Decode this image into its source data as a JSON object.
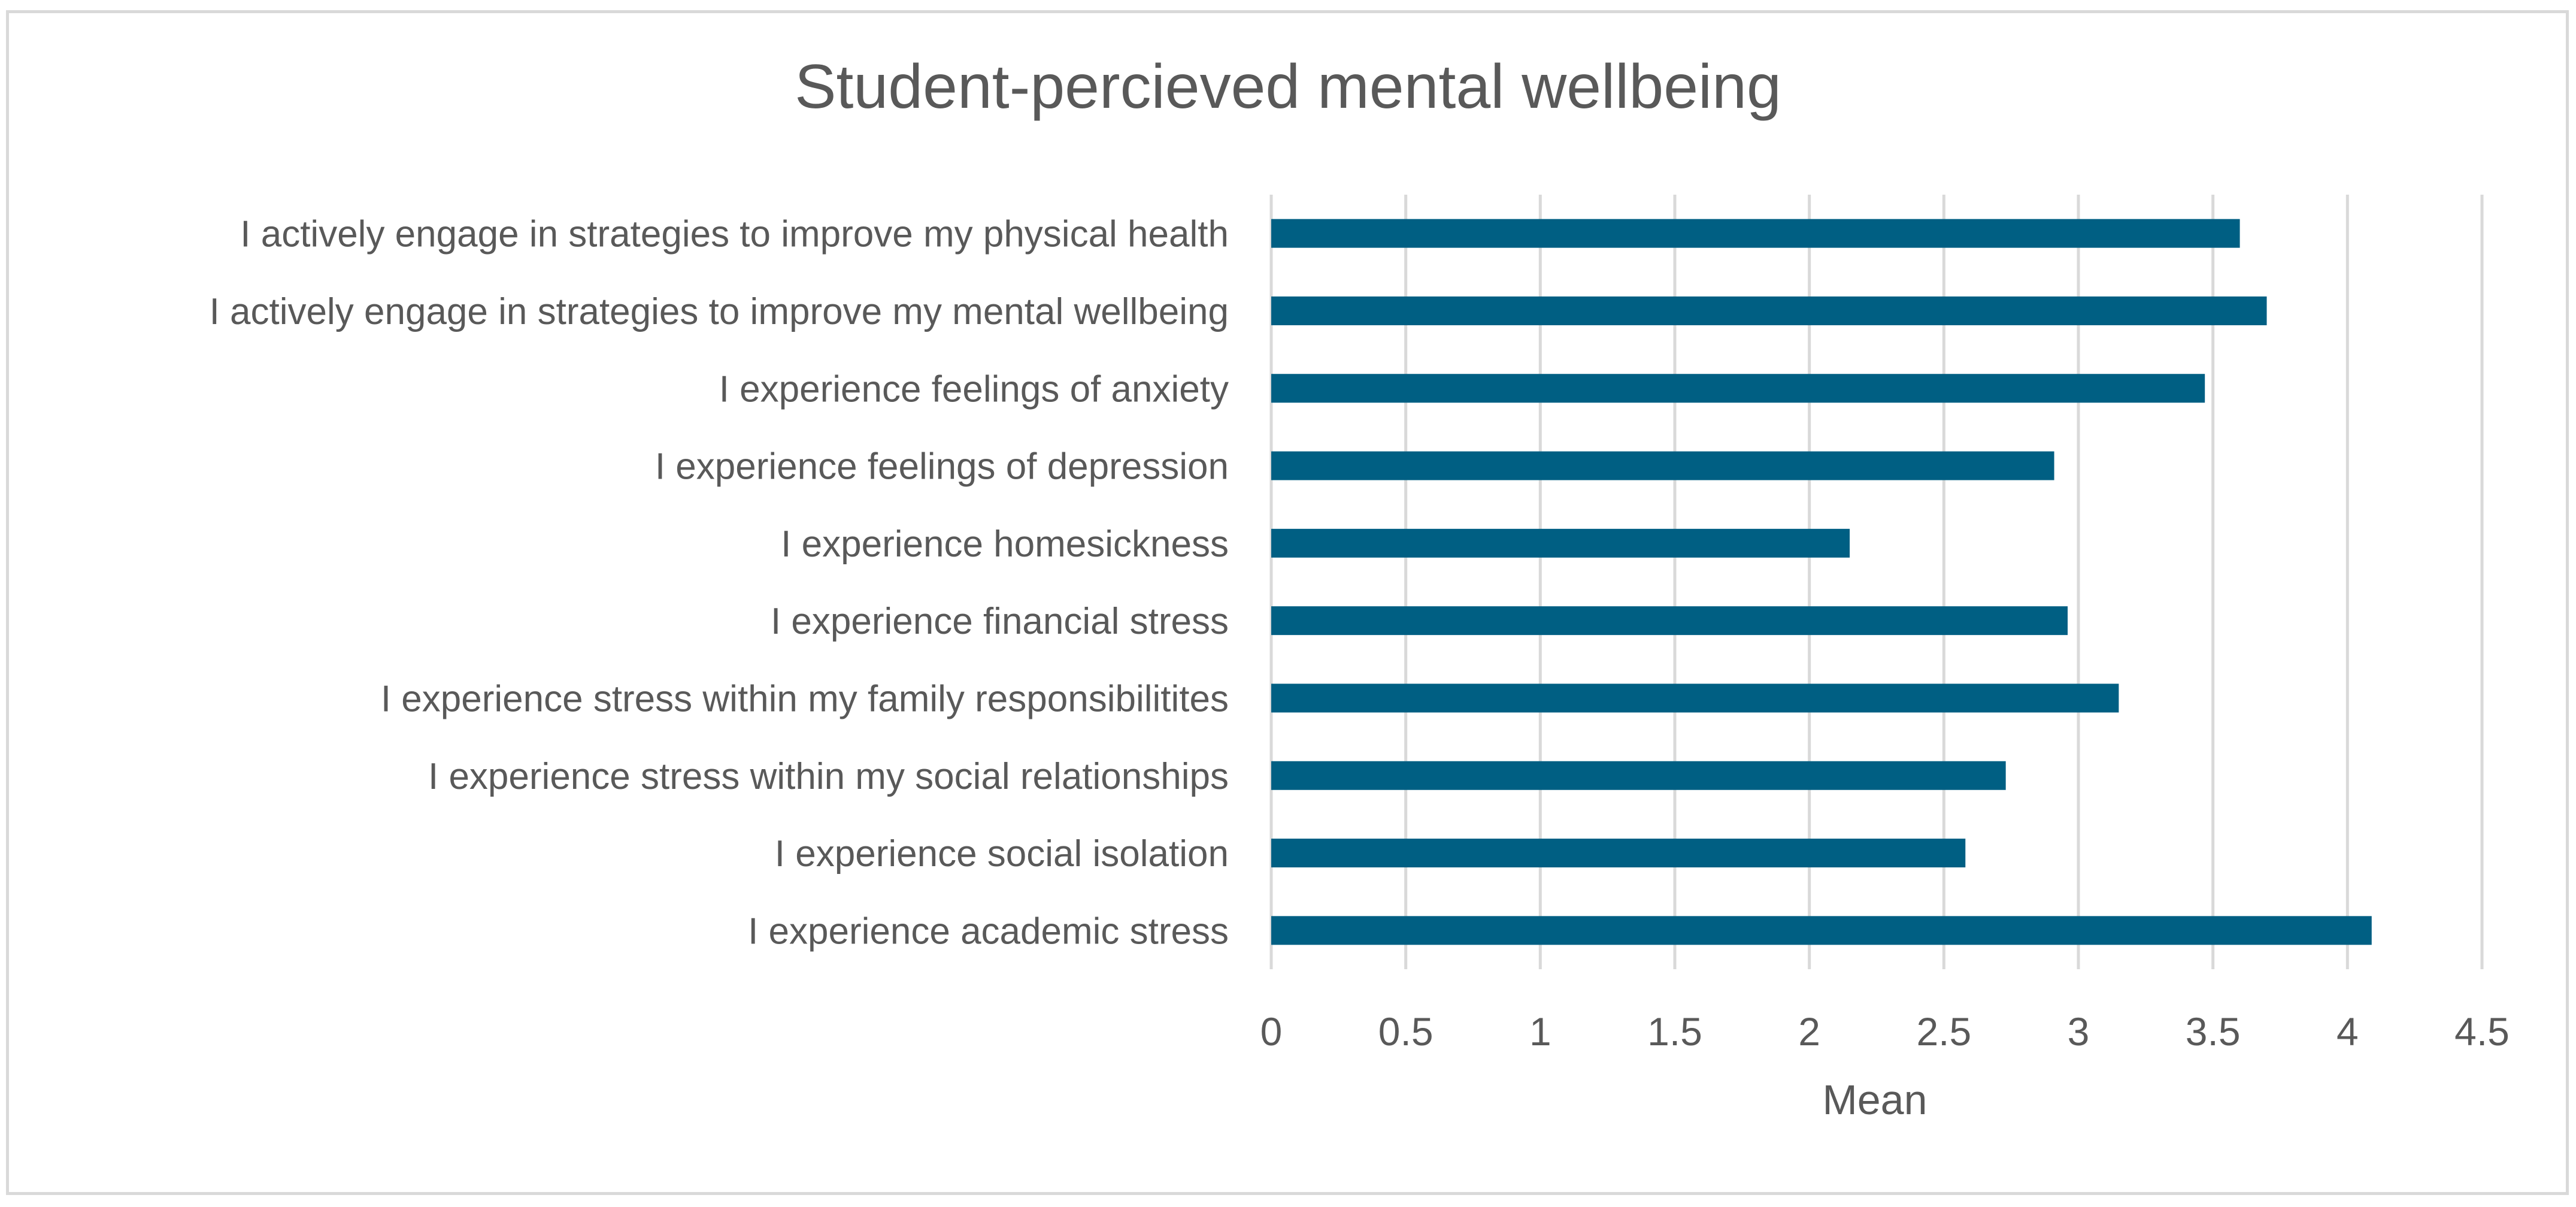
{
  "chart_data": {
    "type": "bar",
    "orientation": "horizontal",
    "title": "Student-percieved mental wellbeing",
    "xlabel": "Mean",
    "ylabel": "",
    "xlim": [
      0,
      4.5
    ],
    "x_ticks": [
      "0",
      "0.5",
      "1",
      "1.5",
      "2",
      "2.5",
      "3",
      "3.5",
      "4",
      "4.5"
    ],
    "x_tick_values": [
      0,
      0.5,
      1,
      1.5,
      2,
      2.5,
      3,
      3.5,
      4,
      4.5
    ],
    "grid": "vertical",
    "legend": "none",
    "bar_color": "#005f83",
    "categories": [
      "I actively engage in strategies to improve my physical health",
      "I actively engage in strategies to improve my mental wellbeing",
      "I experience feelings of anxiety",
      "I experience feelings of depression",
      "I experience homesickness",
      "I experience financial stress",
      "I experience stress within my family responsibilitites",
      "I experience stress within my social relationships",
      "I experience social isolation",
      "I experience academic stress"
    ],
    "values": [
      3.6,
      3.7,
      3.47,
      2.91,
      2.15,
      2.96,
      3.15,
      2.73,
      2.58,
      4.09
    ]
  }
}
